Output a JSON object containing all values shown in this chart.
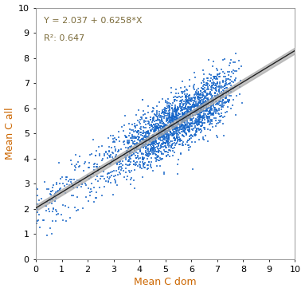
{
  "intercept": 2.037,
  "slope": 0.6258,
  "r_squared": 0.647,
  "n_points": 2292,
  "xlim": [
    0,
    10
  ],
  "ylim": [
    0,
    10
  ],
  "xticks": [
    0,
    1,
    2,
    3,
    4,
    5,
    6,
    7,
    8,
    9,
    10
  ],
  "yticks": [
    0,
    1,
    2,
    3,
    4,
    5,
    6,
    7,
    8,
    9,
    10
  ],
  "xlabel": "Mean C dom",
  "ylabel": "Mean C all",
  "scatter_color": "#1565C8",
  "scatter_alpha": 0.75,
  "scatter_size": 3,
  "line_color": "#222222",
  "ci_color": "#aaaaaa",
  "equation_text": "Y = 2.037 + 0.6258*X",
  "r2_text": "R²: 0.647",
  "annotation_color": "#7B6B3A",
  "annotation_fontsize": 8,
  "xlabel_color": "#cc6600",
  "ylabel_color": "#cc6600",
  "axis_label_fontsize": 9,
  "tick_fontsize": 8,
  "background_color": "#ffffff",
  "seed": 42
}
